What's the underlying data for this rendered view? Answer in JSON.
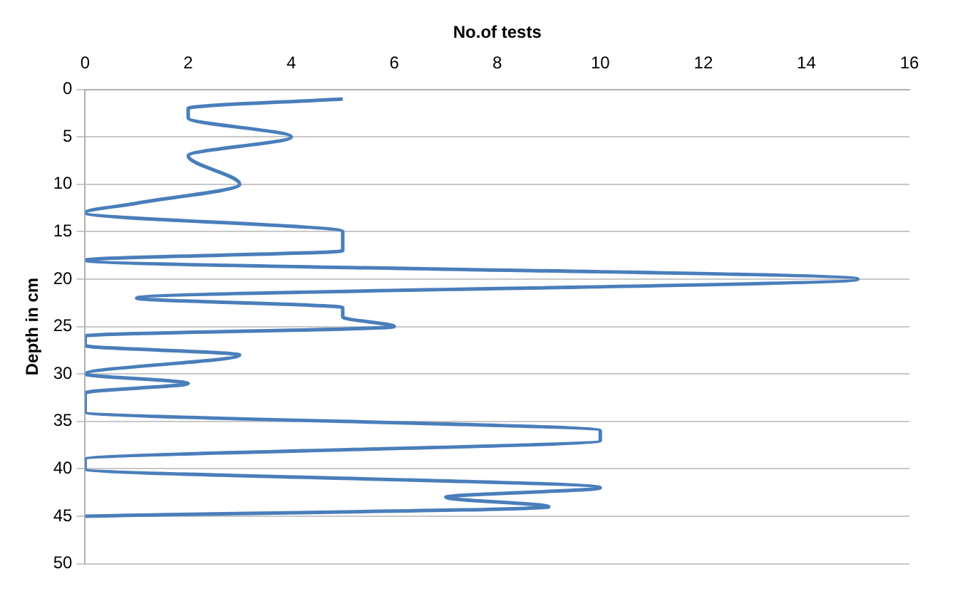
{
  "chart_data": {
    "type": "line",
    "xlabel": "No.of tests",
    "ylabel": "Depth in cm",
    "xlim": [
      0,
      16
    ],
    "xticks": [
      0,
      2,
      4,
      6,
      8,
      10,
      12,
      14,
      16
    ],
    "ylim": [
      50,
      0
    ],
    "yticks": [
      0,
      5,
      10,
      15,
      20,
      25,
      30,
      35,
      40,
      45,
      50
    ],
    "grid": "y",
    "legend": false,
    "marker": "none",
    "series": [
      {
        "color": "#4a7ebb",
        "x": [
          5,
          2,
          2,
          4,
          2,
          3,
          1,
          0,
          5,
          5,
          0,
          15,
          1,
          5,
          5,
          6,
          0,
          0,
          3,
          0,
          2,
          0,
          0,
          0,
          10,
          10,
          0,
          0,
          10,
          7,
          9,
          0
        ],
        "values": [
          1,
          2,
          3,
          5,
          7,
          10,
          12,
          13,
          15,
          17,
          18,
          20,
          22,
          23,
          24,
          25,
          26,
          27,
          28,
          30,
          31,
          32,
          33,
          34,
          36,
          37,
          39,
          40,
          42,
          43,
          44,
          45
        ]
      }
    ]
  }
}
